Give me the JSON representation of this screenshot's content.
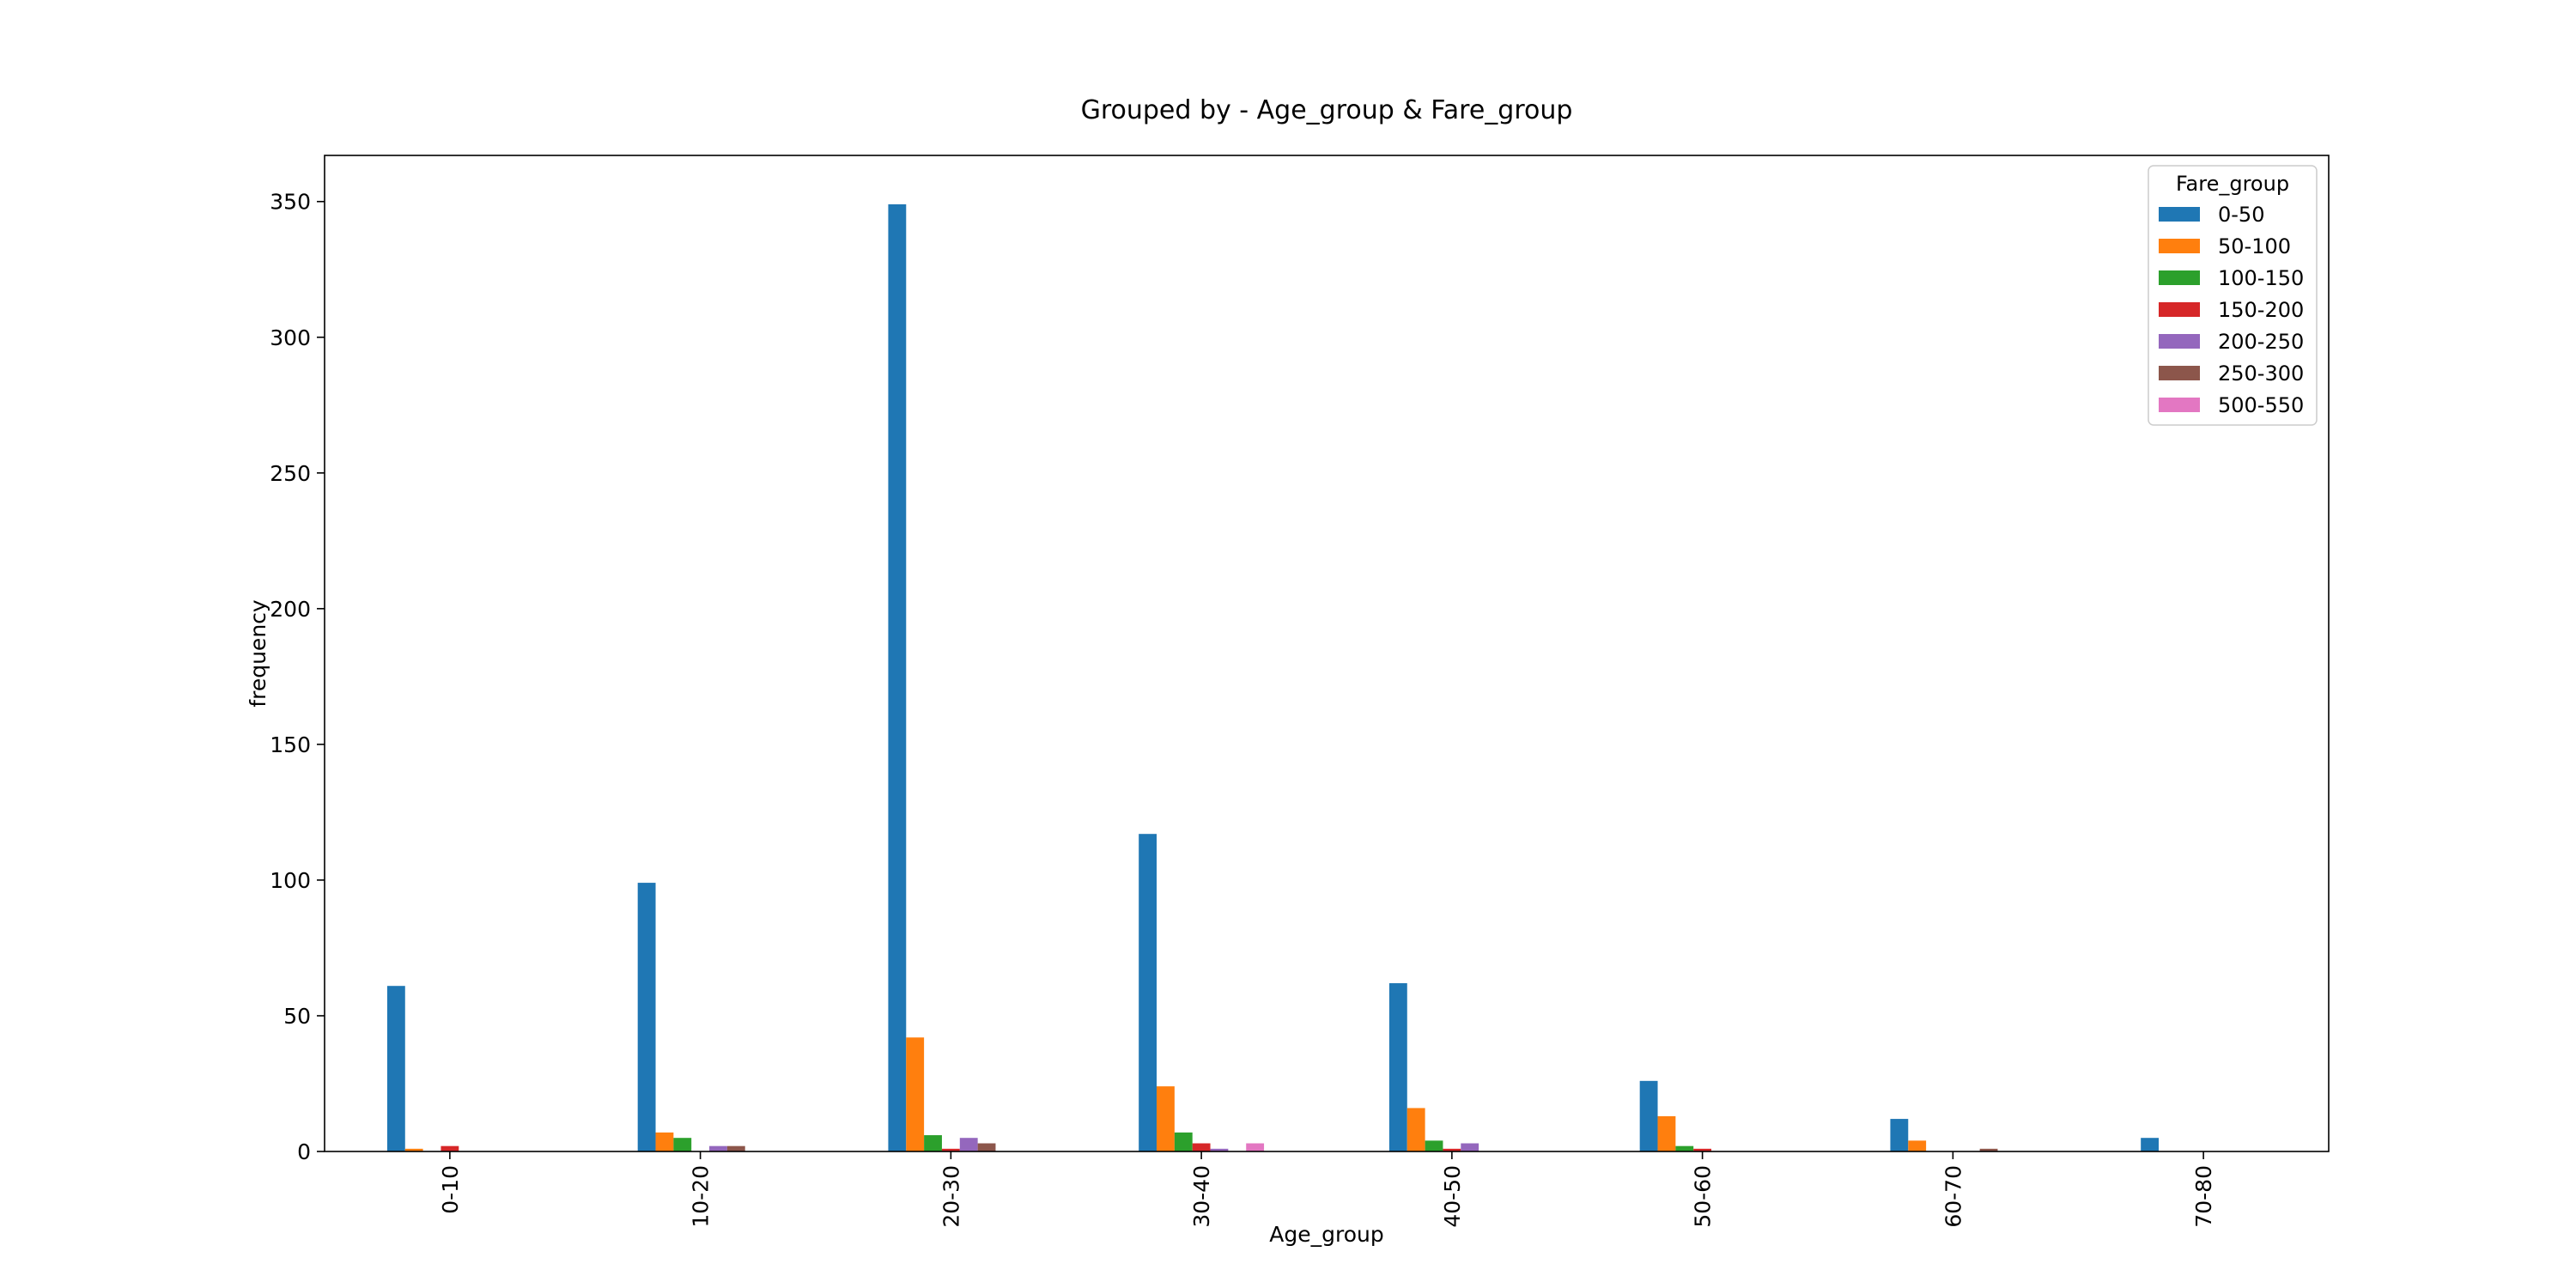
{
  "chart_data": {
    "type": "bar",
    "title": "Grouped by - Age_group & Fare_group",
    "xlabel": "Age_group",
    "ylabel": "frequency",
    "ylim": [
      0,
      367
    ],
    "yticks": [
      0,
      50,
      100,
      150,
      200,
      250,
      300,
      350
    ],
    "categories": [
      "0-10",
      "10-20",
      "20-30",
      "30-40",
      "40-50",
      "50-60",
      "60-70",
      "70-80"
    ],
    "legend_title": "Fare_group",
    "legend_position": "top-right",
    "grid": false,
    "series": [
      {
        "name": "0-50",
        "color": "#1f77b4",
        "values": [
          61,
          99,
          349,
          117,
          62,
          26,
          12,
          5
        ]
      },
      {
        "name": "50-100",
        "color": "#ff7f0e",
        "values": [
          1,
          7,
          42,
          24,
          16,
          13,
          4,
          0
        ]
      },
      {
        "name": "100-150",
        "color": "#2ca02c",
        "values": [
          0,
          5,
          6,
          7,
          4,
          2,
          0,
          0
        ]
      },
      {
        "name": "150-200",
        "color": "#d62728",
        "values": [
          2,
          0,
          1,
          3,
          1,
          1,
          0,
          0
        ]
      },
      {
        "name": "200-250",
        "color": "#9467bd",
        "values": [
          0,
          2,
          5,
          1,
          3,
          0,
          0,
          0
        ]
      },
      {
        "name": "250-300",
        "color": "#8c564b",
        "values": [
          0,
          2,
          3,
          0,
          0,
          0,
          1,
          0
        ]
      },
      {
        "name": "500-550",
        "color": "#e377c2",
        "values": [
          0,
          0,
          0,
          3,
          0,
          0,
          0,
          0
        ]
      }
    ]
  }
}
